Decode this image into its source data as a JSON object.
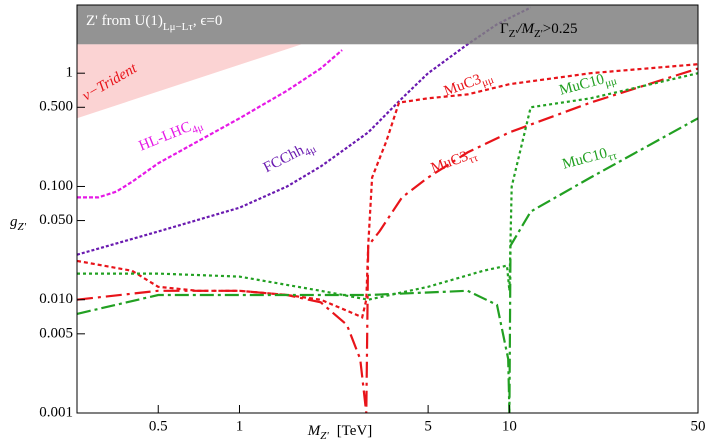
{
  "chart_data": {
    "type": "line",
    "title": {
      "main": "Z' from U(1)",
      "sub": "Lμ−Lτ",
      "tail": ", ϵ=0"
    },
    "x_label": {
      "main": "M",
      "sub": "Z'",
      "tail": "[TeV]"
    },
    "y_label": {
      "main": "g",
      "sub": "Z'"
    },
    "log_x": true,
    "log_y": true,
    "xlim": [
      0.25,
      50
    ],
    "ylim": [
      0.001,
      4
    ],
    "xticks": [
      0.5,
      1,
      5,
      10,
      50
    ],
    "yticks": [
      0.001,
      0.005,
      {
        "value": 0.01,
        "label": "0.010"
      },
      {
        "value": 0.05,
        "label": "0.050"
      },
      {
        "value": 0.1,
        "label": "0.100"
      },
      {
        "value": 0.5,
        "label": "0.500"
      },
      1
    ],
    "shaded_region": {
      "color": "#808080",
      "ymin": 1.8,
      "label": {
        "main": "Γ",
        "sub": "Z'",
        "mid": "/M",
        "sub2": "Z'",
        "tail": ">0.25"
      }
    },
    "trident_region": {
      "name": "ν−Trident",
      "color": "#fbd3d3",
      "x": [
        0.25,
        0.25,
        1.7
      ],
      "y": [
        0.4,
        1.8,
        1.8
      ]
    },
    "series": [
      {
        "name": "HL-LHC",
        "sub": "4μ",
        "color": "#e619e6",
        "x": [
          0.25,
          0.3,
          0.35,
          0.4,
          0.5,
          0.7,
          1,
          1.5,
          2,
          2.4
        ],
        "values": [
          0.08,
          0.08,
          0.09,
          0.11,
          0.16,
          0.25,
          0.4,
          0.7,
          1.1,
          1.6
        ]
      },
      {
        "name": "FCChh",
        "sub": "4μ",
        "color": "#6a1ab0",
        "x": [
          0.25,
          0.5,
          1,
          1.5,
          2,
          3,
          4,
          5,
          7,
          9,
          12
        ],
        "values": [
          0.025,
          0.04,
          0.065,
          0.1,
          0.15,
          0.3,
          0.6,
          1,
          1.8,
          2.7,
          3.8
        ]
      },
      {
        "name": "MuC3",
        "sub": "μμ",
        "color": "#e8141a",
        "x": [
          0.25,
          0.4,
          0.5,
          0.7,
          1,
          1.5,
          2,
          2.5,
          2.85,
          2.95,
          3.0,
          3.1,
          3.5,
          3.9,
          5,
          7,
          10,
          20,
          50
        ],
        "values": [
          0.022,
          0.018,
          0.013,
          0.012,
          0.012,
          0.011,
          0.01,
          0.008,
          0.007,
          0.01,
          0.03,
          0.12,
          0.25,
          0.55,
          0.6,
          0.65,
          0.8,
          1,
          1.2
        ]
      },
      {
        "name": "MuC3",
        "sub": "ττ",
        "color": "#e8141a",
        "x": [
          0.25,
          0.5,
          1,
          1.5,
          2,
          2.5,
          2.8,
          2.95,
          3.0,
          3.3,
          4,
          5,
          7,
          10,
          20,
          50
        ],
        "values": [
          0.01,
          0.012,
          0.012,
          0.011,
          0.0095,
          0.006,
          0.003,
          0.001,
          0.03,
          0.04,
          0.08,
          0.12,
          0.2,
          0.3,
          0.55,
          1.1
        ]
      },
      {
        "name": "MuC10",
        "sub": "μμ",
        "color": "#22a022",
        "x": [
          0.25,
          0.5,
          1,
          2,
          3,
          5,
          8,
          9.8,
          10,
          10.2,
          12,
          20,
          50
        ],
        "values": [
          0.017,
          0.017,
          0.016,
          0.012,
          0.01,
          0.013,
          0.018,
          0.02,
          0.012,
          0.1,
          0.5,
          0.6,
          1.0
        ]
      },
      {
        "name": "MuC10",
        "sub": "ττ",
        "color": "#22a022",
        "x": [
          0.25,
          0.5,
          1,
          3,
          7,
          9,
          9.9,
          10,
          10.1,
          12,
          20,
          50
        ],
        "values": [
          0.0075,
          0.011,
          0.011,
          0.011,
          0.012,
          0.009,
          0.003,
          0.001,
          0.03,
          0.06,
          0.12,
          0.4
        ]
      }
    ]
  }
}
